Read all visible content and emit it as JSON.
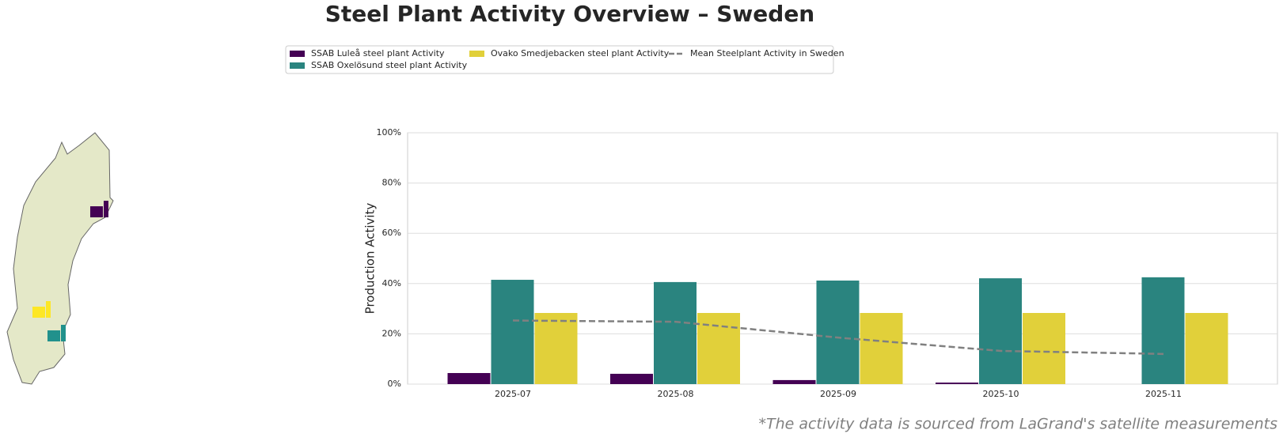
{
  "chart_data": {
    "type": "bar",
    "title": "Steel Plant Activity Overview – Sweden",
    "y_label": "Production Activity",
    "footnote": "*The activity data is sourced from LaGrand's satellite measurements",
    "categories": [
      "2025-07",
      "2025-08",
      "2025-09",
      "2025-10",
      "2025-11"
    ],
    "series": [
      {
        "name": "SSAB Luleå steel plant Activity",
        "color": "#440154",
        "values": [
          4.4,
          4.1,
          1.6,
          0.6,
          0
        ]
      },
      {
        "name": "SSAB Oxelösund steel plant Activity",
        "color": "#2a847f",
        "values": [
          41.5,
          40.6,
          41.2,
          42.1,
          42.5
        ]
      },
      {
        "name": "Ovako Smedjebacken steel plant Activity",
        "color": "#e1d03a",
        "values": [
          28.3,
          28.3,
          28.3,
          28.3,
          28.3
        ]
      },
      {
        "name": "Mean Steelplant Activity in Sweden",
        "type": "line",
        "color": "#808080",
        "values": [
          25.3,
          24.8,
          18.5,
          13.2,
          12.0
        ]
      }
    ],
    "ylim": [
      0,
      100
    ],
    "yticks": [
      {
        "value": 0,
        "label": "0%"
      },
      {
        "value": 20,
        "label": "20%"
      },
      {
        "value": 40,
        "label": "40%"
      },
      {
        "value": 60,
        "label": "60%"
      },
      {
        "value": 80,
        "label": "80%"
      },
      {
        "value": 100,
        "label": "100%"
      }
    ],
    "grid": true
  }
}
